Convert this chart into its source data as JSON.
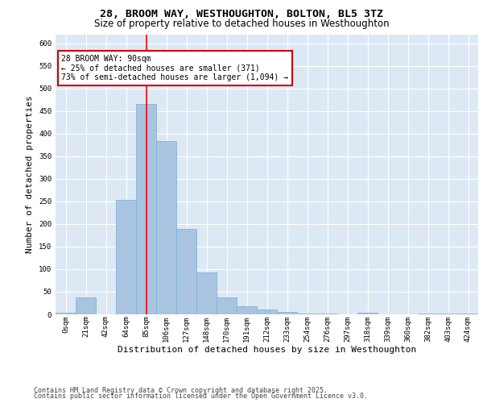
{
  "title_line1": "28, BROOM WAY, WESTHOUGHTON, BOLTON, BL5 3TZ",
  "title_line2": "Size of property relative to detached houses in Westhoughton",
  "xlabel": "Distribution of detached houses by size in Westhoughton",
  "ylabel": "Number of detached properties",
  "categories": [
    "0sqm",
    "21sqm",
    "42sqm",
    "64sqm",
    "85sqm",
    "106sqm",
    "127sqm",
    "148sqm",
    "170sqm",
    "191sqm",
    "212sqm",
    "233sqm",
    "254sqm",
    "276sqm",
    "297sqm",
    "318sqm",
    "339sqm",
    "360sqm",
    "382sqm",
    "403sqm",
    "424sqm"
  ],
  "values": [
    3,
    38,
    0,
    253,
    465,
    383,
    190,
    92,
    38,
    18,
    11,
    5,
    1,
    1,
    0,
    3,
    0,
    0,
    1,
    2,
    1
  ],
  "bar_color": "#a8c4e0",
  "bar_edge_color": "#7aadd4",
  "red_line_x": 4.5,
  "annotation_line1": "28 BROOM WAY: 90sqm",
  "annotation_line2": "← 25% of detached houses are smaller (371)",
  "annotation_line3": "73% of semi-detached houses are larger (1,094) →",
  "annotation_box_color": "#ffffff",
  "annotation_box_edge": "#cc0000",
  "ylim": [
    0,
    620
  ],
  "yticks": [
    0,
    50,
    100,
    150,
    200,
    250,
    300,
    350,
    400,
    450,
    500,
    550,
    600
  ],
  "plot_bg_color": "#dce9f5",
  "footer_line1": "Contains HM Land Registry data © Crown copyright and database right 2025.",
  "footer_line2": "Contains public sector information licensed under the Open Government Licence v3.0.",
  "title_fontsize": 9.5,
  "subtitle_fontsize": 8.5,
  "axis_label_fontsize": 8,
  "tick_fontsize": 6.5,
  "footer_fontsize": 6,
  "annotation_fontsize": 7
}
